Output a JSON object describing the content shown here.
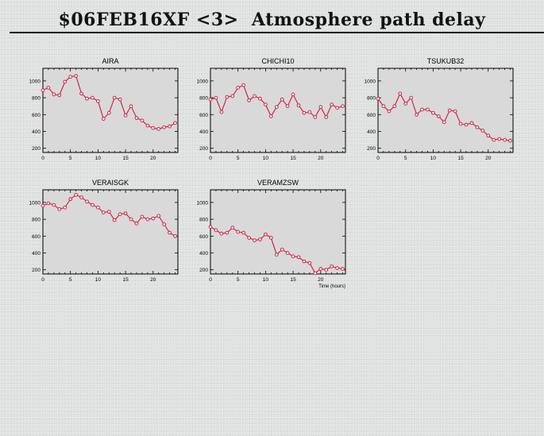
{
  "page": {
    "title": "$06FEB16XF <3>  Atmosphere path delay"
  },
  "chart_data": [
    {
      "type": "line",
      "title": "AIRA",
      "xlabel": "",
      "ylabel": "",
      "xlim": [
        0,
        24.5
      ],
      "ylim": [
        150,
        1150
      ],
      "xticks": [
        0,
        5,
        10,
        15,
        20
      ],
      "yticks": [
        200,
        400,
        600,
        800,
        1000
      ],
      "series": [
        {
          "color": "#cc1a40",
          "x": [
            0,
            1,
            2,
            3,
            4,
            5,
            6,
            7,
            8,
            9,
            10,
            11,
            12,
            13,
            14,
            15,
            16,
            17,
            18,
            19,
            20,
            21,
            22,
            23,
            24
          ],
          "y": [
            890,
            920,
            840,
            830,
            990,
            1050,
            1060,
            850,
            790,
            800,
            760,
            550,
            620,
            800,
            780,
            590,
            700,
            560,
            530,
            470,
            440,
            430,
            450,
            460,
            500
          ]
        }
      ]
    },
    {
      "type": "line",
      "title": "CHICHI10",
      "xlabel": "",
      "ylabel": "",
      "xlim": [
        0,
        24.5
      ],
      "ylim": [
        150,
        1150
      ],
      "xticks": [
        0,
        5,
        10,
        15,
        20
      ],
      "yticks": [
        200,
        400,
        600,
        800,
        1000
      ],
      "series": [
        {
          "color": "#cc1a40",
          "x": [
            0,
            1,
            2,
            3,
            4,
            5,
            6,
            7,
            8,
            9,
            10,
            11,
            12,
            13,
            14,
            15,
            16,
            17,
            18,
            19,
            20,
            21,
            22,
            23,
            24
          ],
          "y": [
            780,
            800,
            630,
            810,
            820,
            920,
            950,
            770,
            820,
            790,
            720,
            580,
            690,
            780,
            700,
            840,
            710,
            620,
            630,
            570,
            690,
            570,
            720,
            680,
            700
          ]
        }
      ]
    },
    {
      "type": "line",
      "title": "TSUKUB32",
      "xlabel": "",
      "ylabel": "",
      "xlim": [
        0,
        24.5
      ],
      "ylim": [
        150,
        1150
      ],
      "xticks": [
        0,
        5,
        10,
        15,
        20
      ],
      "yticks": [
        200,
        400,
        600,
        800,
        1000
      ],
      "series": [
        {
          "color": "#cc1a40",
          "x": [
            0,
            1,
            2,
            3,
            4,
            5,
            6,
            7,
            8,
            9,
            10,
            11,
            12,
            13,
            14,
            15,
            16,
            17,
            18,
            19,
            20,
            21,
            22,
            23,
            24
          ],
          "y": [
            790,
            700,
            640,
            700,
            850,
            730,
            800,
            600,
            660,
            660,
            620,
            580,
            510,
            650,
            640,
            490,
            480,
            500,
            450,
            410,
            350,
            300,
            310,
            300,
            290
          ]
        }
      ]
    },
    {
      "type": "line",
      "title": "VERAISGK",
      "xlabel": "",
      "ylabel": "",
      "xlim": [
        0,
        24.5
      ],
      "ylim": [
        150,
        1150
      ],
      "xticks": [
        0,
        5,
        10,
        15,
        20
      ],
      "yticks": [
        200,
        400,
        600,
        800,
        1000
      ],
      "series": [
        {
          "color": "#cc1a40",
          "x": [
            0,
            1,
            2,
            3,
            4,
            5,
            6,
            7,
            8,
            9,
            10,
            11,
            12,
            13,
            14,
            15,
            16,
            17,
            18,
            19,
            20,
            21,
            22,
            23,
            24
          ],
          "y": [
            960,
            990,
            970,
            920,
            940,
            1040,
            1090,
            1060,
            1010,
            970,
            940,
            880,
            890,
            790,
            860,
            870,
            800,
            750,
            830,
            800,
            810,
            840,
            740,
            640,
            600
          ]
        }
      ]
    },
    {
      "type": "line",
      "title": "VERAMZSW",
      "xlabel": "Time (hours)",
      "ylabel": "",
      "xlim": [
        0,
        24.5
      ],
      "ylim": [
        150,
        1150
      ],
      "xticks": [
        0,
        5,
        10,
        15,
        20
      ],
      "yticks": [
        200,
        400,
        600,
        800,
        1000
      ],
      "series": [
        {
          "color": "#cc1a40",
          "x": [
            0,
            1,
            2,
            3,
            4,
            5,
            6,
            7,
            8,
            9,
            10,
            11,
            12,
            13,
            14,
            15,
            16,
            17,
            18,
            19,
            20,
            21,
            22,
            23,
            24
          ],
          "y": [
            710,
            670,
            630,
            640,
            700,
            650,
            640,
            580,
            550,
            560,
            620,
            580,
            380,
            440,
            400,
            360,
            350,
            300,
            280,
            160,
            210,
            200,
            240,
            220,
            210
          ]
        }
      ]
    }
  ]
}
